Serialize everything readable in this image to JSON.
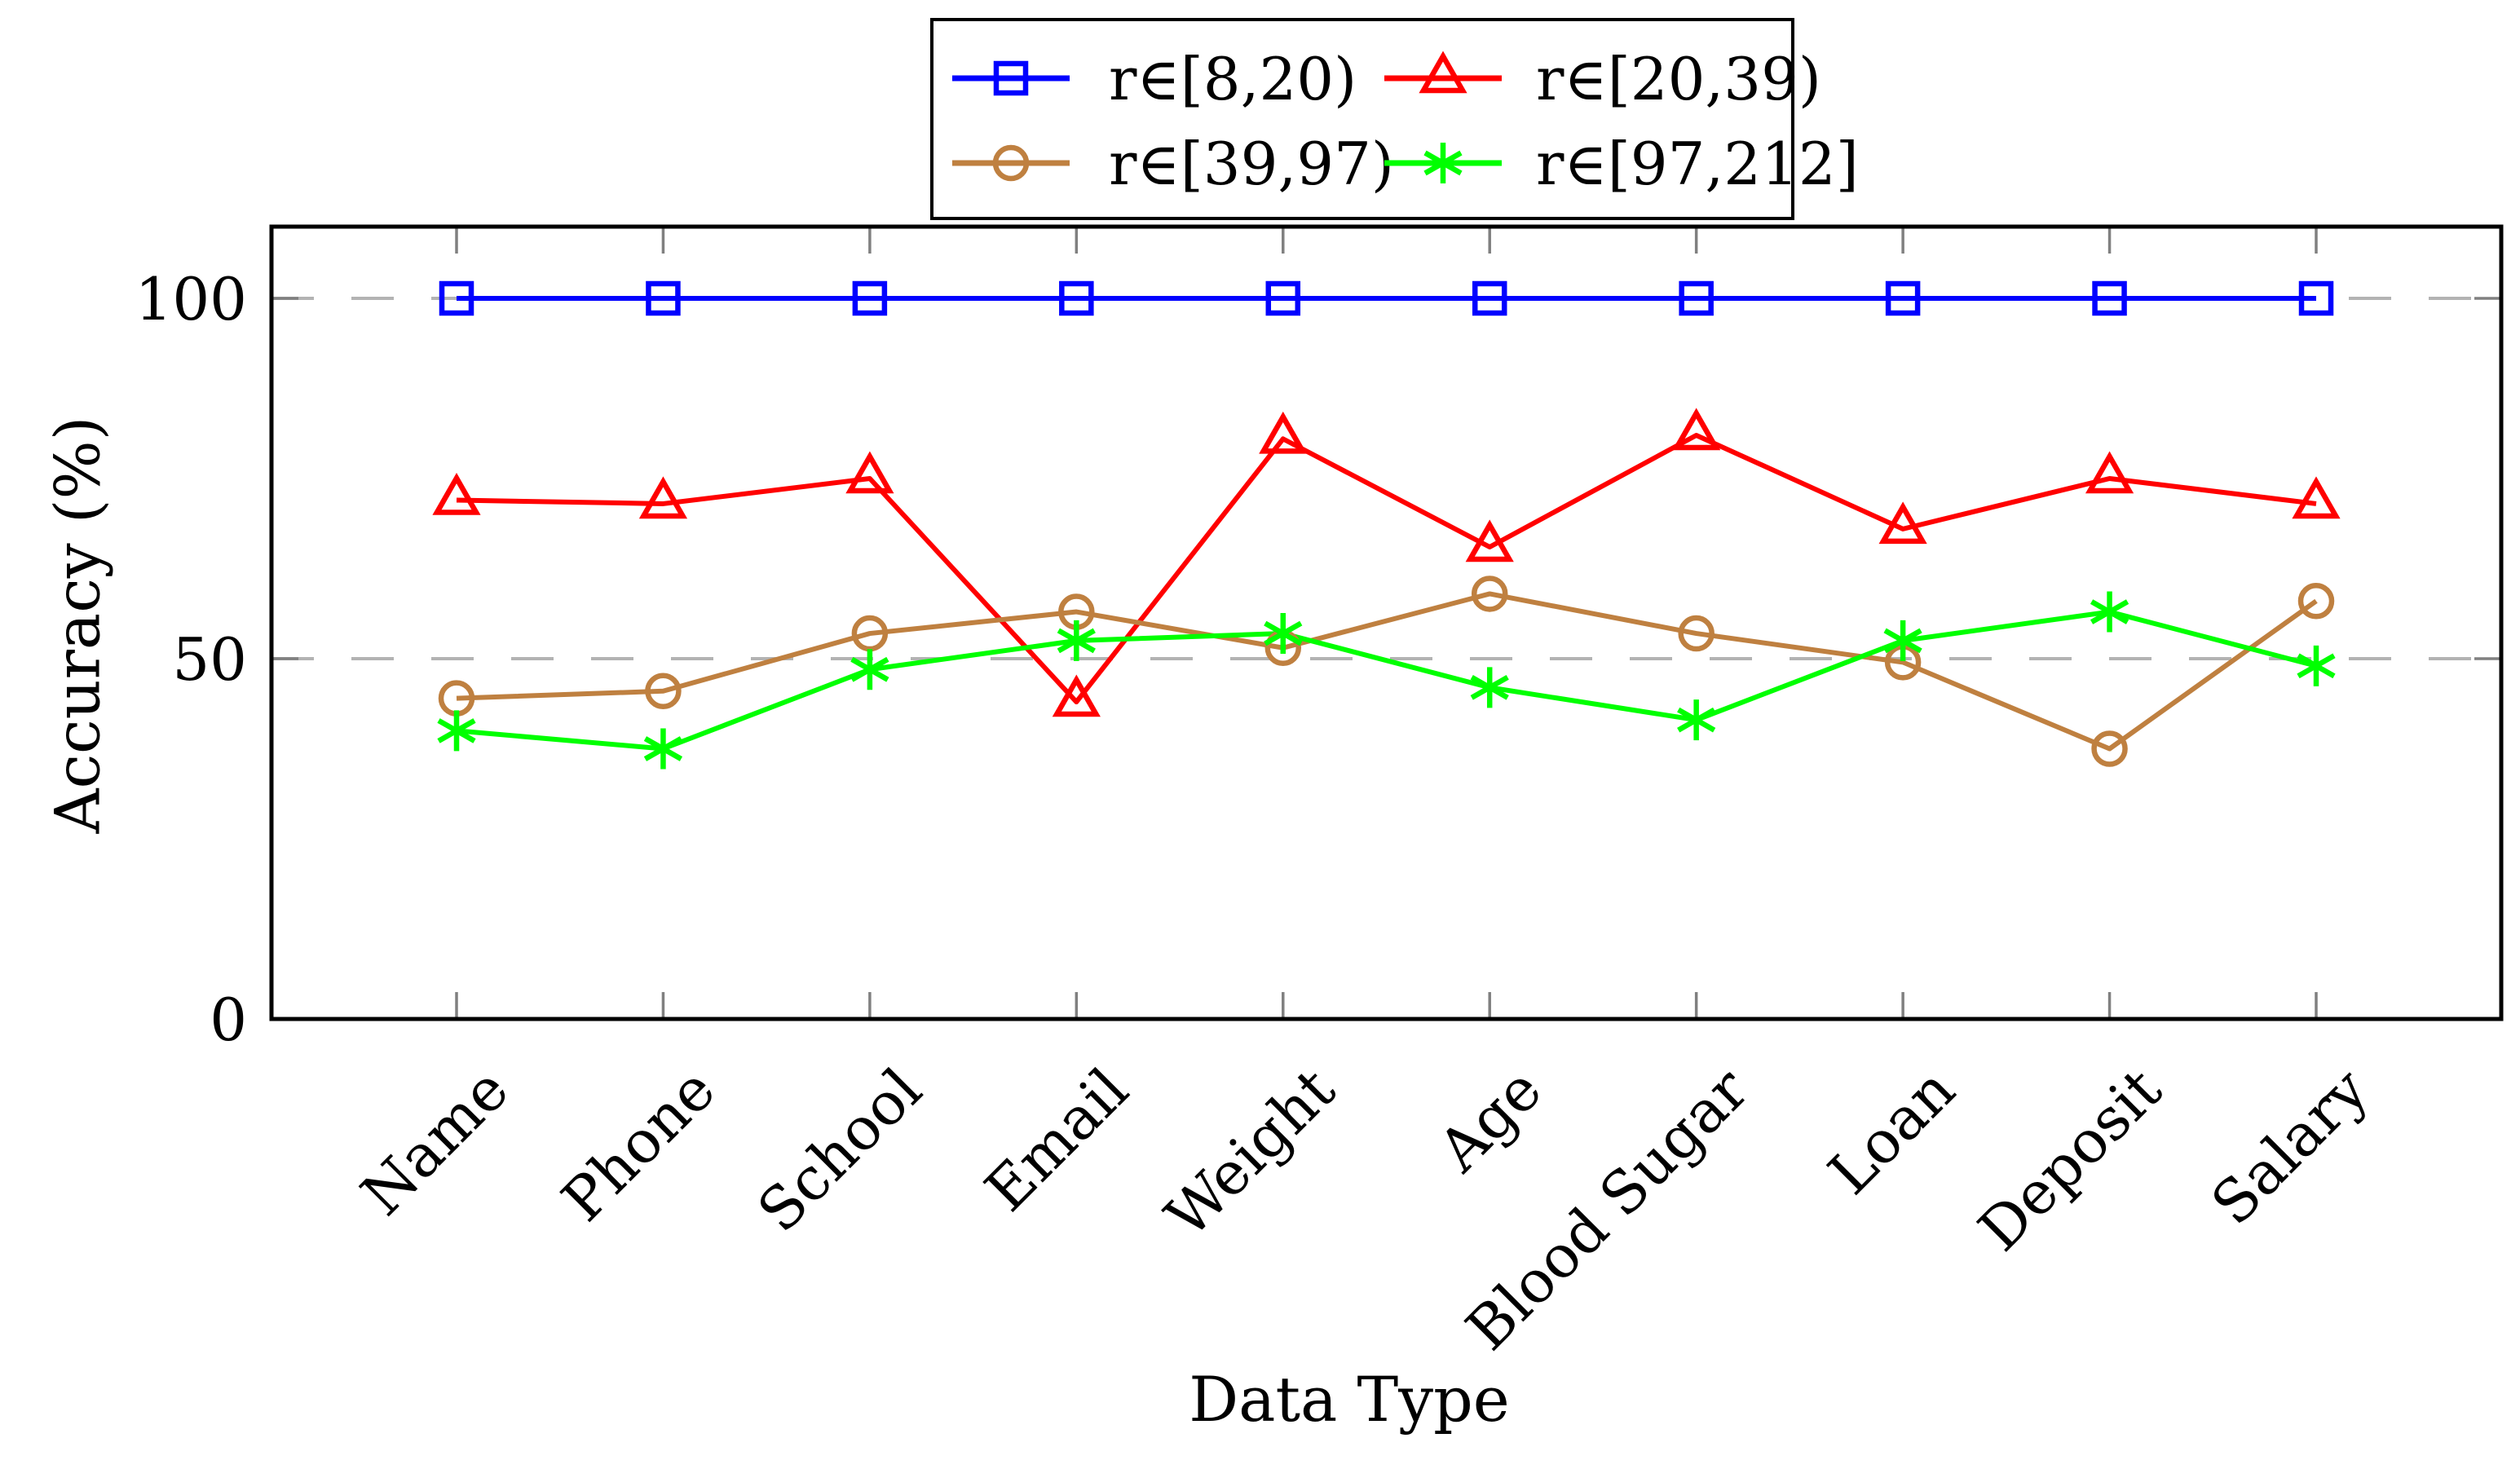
{
  "chart_data": {
    "type": "line",
    "title": "",
    "xlabel": "Data Type",
    "ylabel": "Accuracy (%)",
    "ylim": [
      0,
      110
    ],
    "yticks": [
      0,
      50,
      100
    ],
    "gridlines_at": [
      50,
      100
    ],
    "grid_style": "dashed-gray",
    "legend_position": "top-center-outside",
    "categories": [
      "Name",
      "Phone",
      "School",
      "Email",
      "Weight",
      "Age",
      "Blood Sugar",
      "Loan",
      "Deposit",
      "Salary"
    ],
    "series": [
      {
        "name": "r∈[8,20)",
        "color": "#0000ff",
        "marker": "square",
        "values": [
          100,
          100,
          100,
          100,
          100,
          100,
          100,
          100,
          100,
          100
        ]
      },
      {
        "name": "r∈[20,39)",
        "color": "#ff0000",
        "marker": "triangle",
        "values": [
          72,
          71.5,
          75,
          44,
          80.5,
          65.5,
          81,
          68,
          75,
          71.5
        ]
      },
      {
        "name": "r∈[39,97)",
        "color": "#bf8040",
        "marker": "circle",
        "values": [
          44.5,
          45.5,
          53.5,
          56.5,
          51.5,
          59,
          53.5,
          49.5,
          37.5,
          58
        ]
      },
      {
        "name": "r∈[97,212]",
        "color": "#00ff00",
        "marker": "star",
        "values": [
          40,
          37.5,
          48.5,
          52.5,
          53.5,
          46,
          41.5,
          52.5,
          56.5,
          49
        ]
      }
    ],
    "colors": {
      "frame": "#000000",
      "grid": "#b3b3b3",
      "tick": "#808080",
      "text": "#000000",
      "legend_border": "#000000",
      "legend_bg": "#ffffff"
    }
  }
}
